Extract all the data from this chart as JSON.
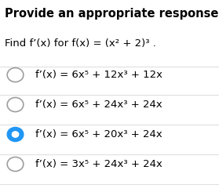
{
  "title": "Provide an appropriate response.",
  "question": "Find f’(x) for f(x) = (x² + 2)³ .",
  "options": [
    "f’(x) = 6x⁵ + 12x³ + 12x",
    "f’(x) = 6x⁵ + 24x³ + 24x",
    "f’(x) = 6x⁵ + 20x³ + 24x",
    "f’(x) = 3x⁵ + 24x³ + 24x"
  ],
  "correct_index": 2,
  "bg_color": "#ffffff",
  "text_color": "#000000",
  "selected_color": "#2196F3",
  "unselected_color": "#9e9e9e",
  "divider_color": "#e0e0e0",
  "title_fontsize": 10.5,
  "question_fontsize": 9.5,
  "option_fontsize": 9.5
}
